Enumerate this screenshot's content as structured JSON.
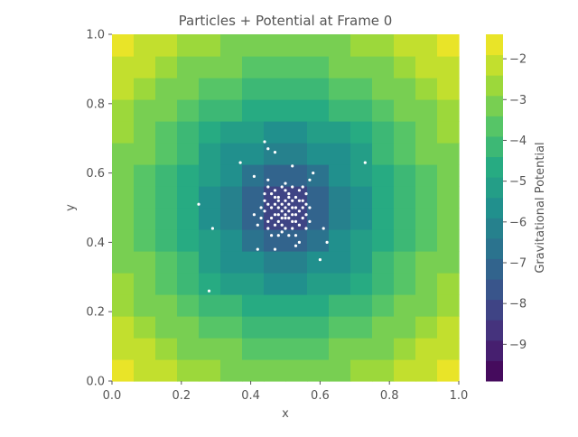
{
  "chart_data": {
    "type": "heatmap",
    "title": "Particles + Potential at Frame 0",
    "xlabel": "x",
    "ylabel": "y",
    "xlim": [
      0.0,
      1.0
    ],
    "ylim": [
      0.0,
      1.0
    ],
    "x_ticks": [
      "0.0",
      "0.2",
      "0.4",
      "0.6",
      "0.8",
      "1.0"
    ],
    "y_ticks": [
      "0.0",
      "0.2",
      "0.4",
      "0.6",
      "0.8",
      "1.0"
    ],
    "grid": false,
    "grid_cells": 16,
    "colormap": "viridis",
    "colorbar": {
      "label": "Gravitational Potential",
      "vmin": -9.9,
      "vmax": -1.4,
      "levels": 17,
      "ticks": [
        "−2",
        "−3",
        "−4",
        "−5",
        "−6",
        "−7",
        "−8",
        "−9"
      ]
    },
    "potential_model": {
      "center": [
        0.5,
        0.5
      ],
      "min_value": -9.9,
      "edge_value": -1.4
    },
    "scatter": {
      "name": "particles",
      "color": "#ffffff",
      "points": [
        [
          0.44,
          0.69
        ],
        [
          0.45,
          0.67
        ],
        [
          0.47,
          0.66
        ],
        [
          0.37,
          0.63
        ],
        [
          0.73,
          0.63
        ],
        [
          0.52,
          0.62
        ],
        [
          0.58,
          0.6
        ],
        [
          0.57,
          0.58
        ],
        [
          0.41,
          0.59
        ],
        [
          0.45,
          0.58
        ],
        [
          0.25,
          0.51
        ],
        [
          0.29,
          0.44
        ],
        [
          0.28,
          0.26
        ],
        [
          0.42,
          0.38
        ],
        [
          0.47,
          0.38
        ],
        [
          0.62,
          0.4
        ],
        [
          0.6,
          0.35
        ],
        [
          0.53,
          0.39
        ],
        [
          0.54,
          0.4
        ],
        [
          0.46,
          0.42
        ],
        [
          0.56,
          0.44
        ],
        [
          0.61,
          0.44
        ],
        [
          0.43,
          0.5
        ],
        [
          0.41,
          0.48
        ],
        [
          0.42,
          0.45
        ],
        [
          0.45,
          0.56
        ],
        [
          0.46,
          0.54
        ],
        [
          0.47,
          0.55
        ],
        [
          0.48,
          0.53
        ],
        [
          0.49,
          0.56
        ],
        [
          0.5,
          0.55
        ],
        [
          0.51,
          0.54
        ],
        [
          0.52,
          0.56
        ],
        [
          0.53,
          0.53
        ],
        [
          0.54,
          0.55
        ],
        [
          0.55,
          0.52
        ],
        [
          0.56,
          0.51
        ],
        [
          0.57,
          0.5
        ],
        [
          0.55,
          0.47
        ],
        [
          0.54,
          0.45
        ],
        [
          0.52,
          0.46
        ],
        [
          0.5,
          0.47
        ],
        [
          0.49,
          0.49
        ],
        [
          0.48,
          0.5
        ],
        [
          0.47,
          0.48
        ],
        [
          0.46,
          0.47
        ],
        [
          0.45,
          0.46
        ],
        [
          0.44,
          0.49
        ],
        [
          0.45,
          0.51
        ],
        [
          0.47,
          0.51
        ],
        [
          0.48,
          0.46
        ],
        [
          0.5,
          0.44
        ],
        [
          0.51,
          0.42
        ],
        [
          0.49,
          0.43
        ],
        [
          0.52,
          0.44
        ],
        [
          0.53,
          0.48
        ],
        [
          0.52,
          0.5
        ],
        [
          0.51,
          0.51
        ],
        [
          0.5,
          0.5
        ],
        [
          0.49,
          0.51
        ],
        [
          0.48,
          0.52
        ],
        [
          0.51,
          0.49
        ],
        [
          0.52,
          0.52
        ],
        [
          0.53,
          0.5
        ],
        [
          0.54,
          0.49
        ],
        [
          0.55,
          0.5
        ],
        [
          0.5,
          0.52
        ],
        [
          0.49,
          0.47
        ],
        [
          0.47,
          0.45
        ],
        [
          0.53,
          0.46
        ],
        [
          0.46,
          0.5
        ],
        [
          0.56,
          0.48
        ],
        [
          0.44,
          0.52
        ],
        [
          0.51,
          0.47
        ],
        [
          0.5,
          0.48
        ],
        [
          0.52,
          0.48
        ],
        [
          0.48,
          0.48
        ],
        [
          0.49,
          0.45
        ],
        [
          0.51,
          0.53
        ],
        [
          0.54,
          0.52
        ],
        [
          0.47,
          0.53
        ],
        [
          0.55,
          0.56
        ],
        [
          0.45,
          0.44
        ],
        [
          0.57,
          0.46
        ],
        [
          0.43,
          0.47
        ],
        [
          0.5,
          0.57
        ],
        [
          0.48,
          0.42
        ],
        [
          0.53,
          0.42
        ],
        [
          0.56,
          0.54
        ],
        [
          0.44,
          0.54
        ]
      ]
    }
  }
}
